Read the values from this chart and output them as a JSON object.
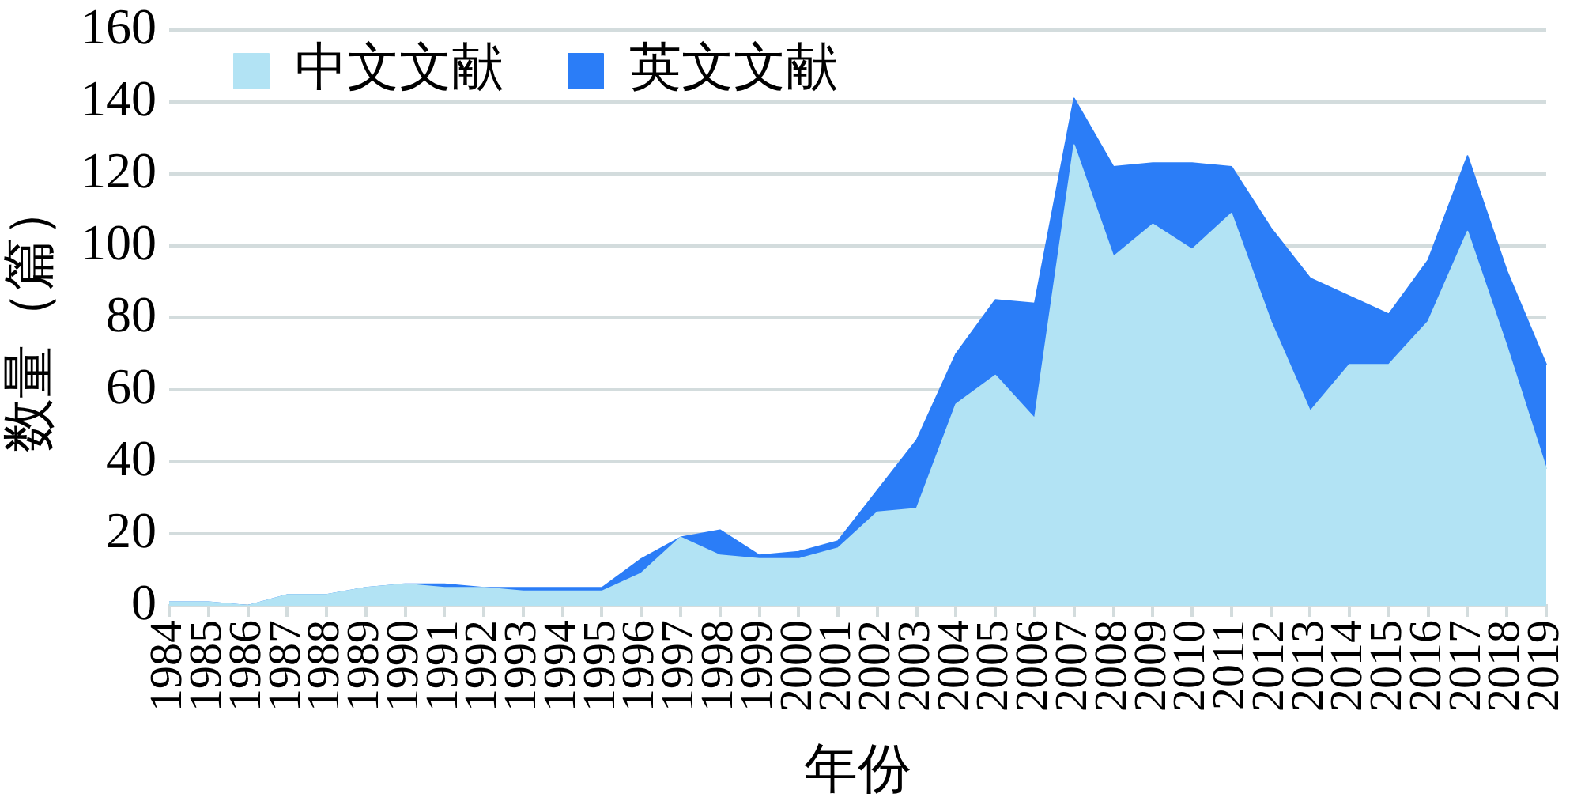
{
  "chart_data": {
    "type": "area",
    "stacked": true,
    "xlabel": "年份",
    "ylabel": "数量（篇）",
    "categories": [
      "1984",
      "1985",
      "1986",
      "1987",
      "1988",
      "1989",
      "1990",
      "1991",
      "1992",
      "1993",
      "1994",
      "1995",
      "1996",
      "1997",
      "1998",
      "1999",
      "2000",
      "2001",
      "2002",
      "2003",
      "2004",
      "2005",
      "2006",
      "2007",
      "2008",
      "2009",
      "2010",
      "2011",
      "2012",
      "2013",
      "2014",
      "2015",
      "2016",
      "2017",
      "2018",
      "2019"
    ],
    "series": [
      {
        "name": "中文文献",
        "color": "#b2e3f4",
        "values": [
          1,
          1,
          0,
          3,
          3,
          5,
          6,
          5,
          5,
          4,
          4,
          4,
          9,
          19,
          14,
          13,
          13,
          16,
          26,
          27,
          56,
          64,
          52,
          128,
          97,
          106,
          99,
          109,
          79,
          54,
          67,
          67,
          79,
          104,
          72,
          38
        ]
      },
      {
        "name": "英文文献",
        "color": "#2b7df7",
        "values": [
          0,
          0,
          0,
          0,
          0,
          0,
          0,
          1,
          0,
          1,
          1,
          1,
          4,
          0,
          7,
          1,
          2,
          2,
          6,
          19,
          14,
          21,
          32,
          13,
          25,
          17,
          24,
          13,
          26,
          37,
          19,
          14,
          17,
          21,
          21,
          29
        ]
      }
    ],
    "ylim": [
      0,
      160
    ],
    "yticks": [
      0,
      20,
      40,
      60,
      80,
      100,
      120,
      140,
      160
    ],
    "grid": "y",
    "legend": "top left"
  }
}
